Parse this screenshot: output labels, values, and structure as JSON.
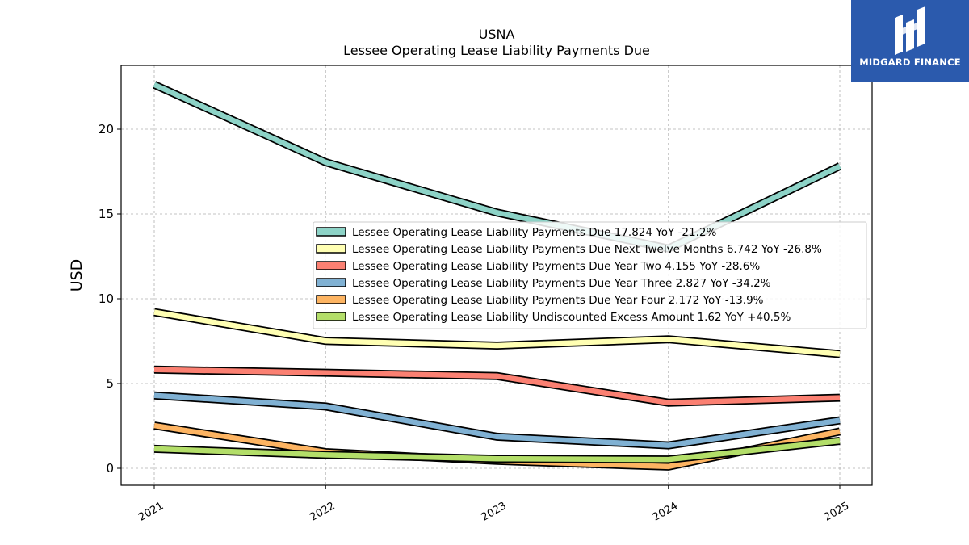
{
  "chart_data": {
    "type": "line",
    "title": "USNA",
    "subtitle": "Lessee Operating Lease Liability Payments Due",
    "xlabel": "",
    "ylabel": "USD",
    "categories": [
      "2021",
      "2022",
      "2023",
      "2024",
      "2025"
    ],
    "ylim": [
      -1,
      23.8
    ],
    "yticks": [
      0,
      5,
      10,
      15,
      20
    ],
    "grid": true,
    "legend_position": "center-right",
    "series": [
      {
        "name": "Lessee Operating Lease Liability Payments Due",
        "legend": "Lessee Operating Lease Liability Payments Due  17.824 YoY -21.2%",
        "color": "#8dd3c7",
        "values": [
          22.63,
          18.05,
          15.08,
          12.96,
          17.82
        ]
      },
      {
        "name": "Lessee Operating Lease Liability Payments Due Next Twelve Months",
        "legend": "Lessee Operating Lease Liability Payments Due Next Twelve Months  6.742 YoY -26.8%",
        "color": "#ffffb3",
        "values": [
          9.21,
          7.51,
          7.24,
          7.61,
          6.74
        ]
      },
      {
        "name": "Lessee Operating Lease Liability Payments Due Year Two",
        "legend": "Lessee Operating Lease Liability Payments Due Year Two  4.155 YoY -28.6%",
        "color": "#fb8072",
        "values": [
          5.82,
          5.64,
          5.44,
          3.87,
          4.16
        ]
      },
      {
        "name": "Lessee Operating Lease Liability Payments Due Year Three",
        "legend": "Lessee Operating Lease Liability Payments Due Year Three  2.827 YoY -34.2%",
        "color": "#80b1d3",
        "values": [
          4.3,
          3.65,
          1.86,
          1.35,
          2.83
        ]
      },
      {
        "name": "Lessee Operating Lease Liability Payments Due Year Four",
        "legend": "Lessee Operating Lease Liability Payments Due Year Four  2.172 YoY -13.9%",
        "color": "#fdb462",
        "values": [
          2.52,
          0.95,
          0.44,
          0.1,
          2.17
        ]
      },
      {
        "name": "Lessee Operating Lease Liability Undiscounted Excess Amount",
        "legend": "Lessee Operating Lease Liability Undiscounted Excess Amount  1.62 YoY +40.5%",
        "color": "#b3de69",
        "values": [
          1.15,
          0.79,
          0.56,
          0.52,
          1.62
        ]
      }
    ]
  },
  "logo": {
    "text": "MIDGARD FINANCE",
    "background": "#2b5aad"
  }
}
